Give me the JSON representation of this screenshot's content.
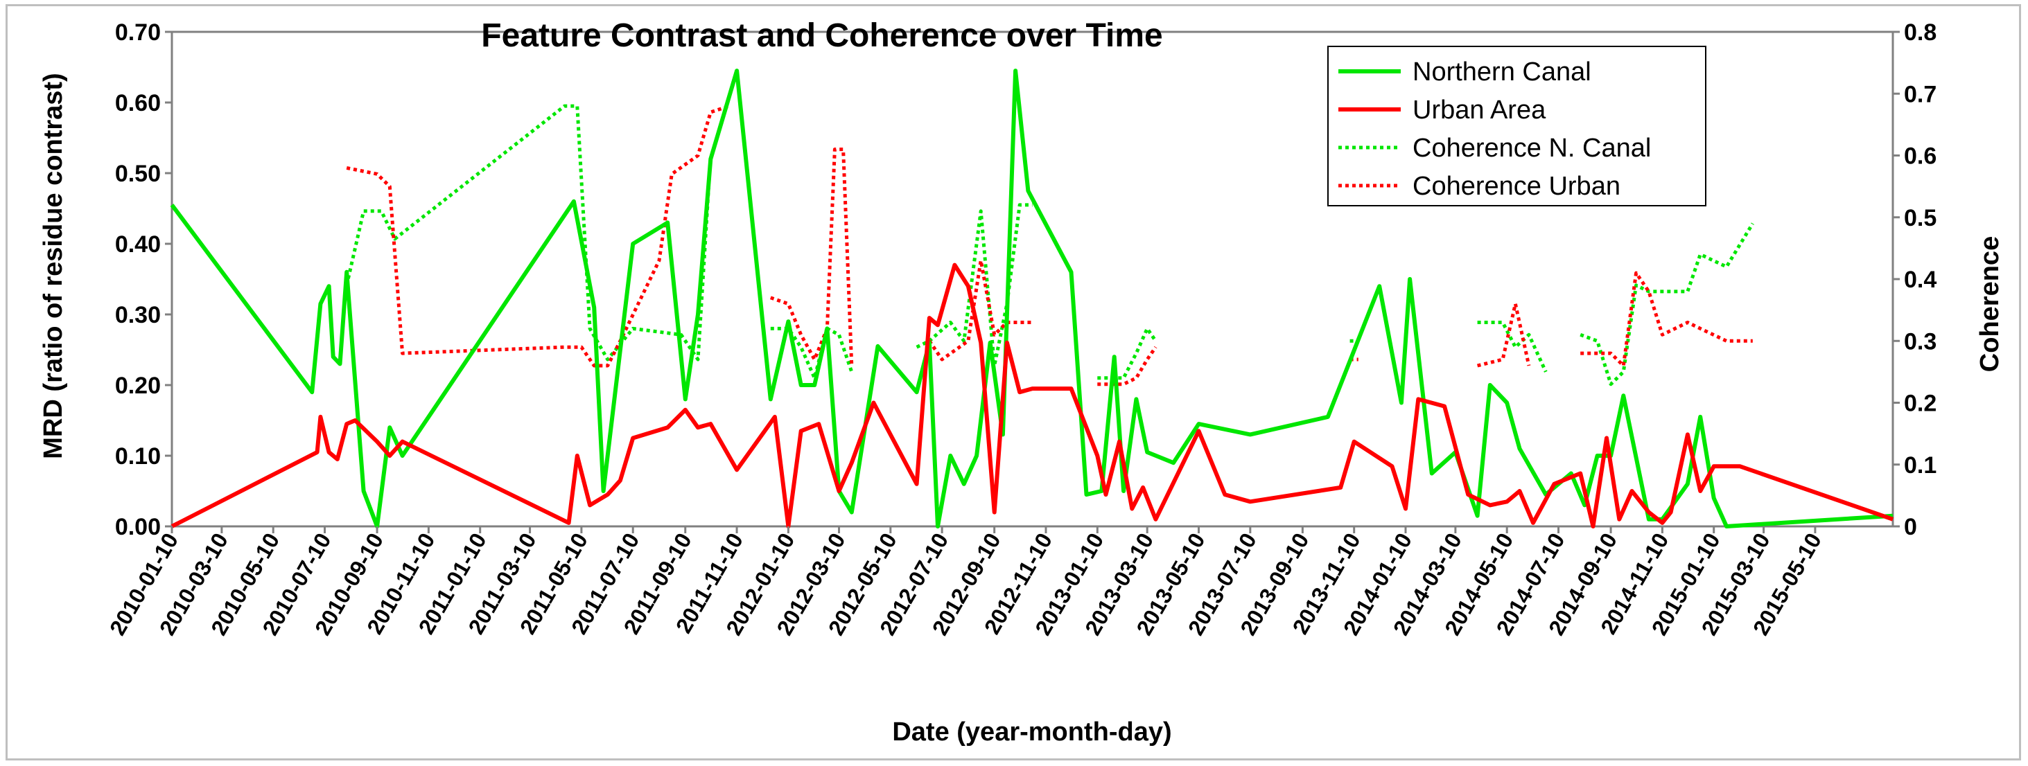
{
  "chart_data": {
    "type": "line",
    "title": "Feature Contrast and Coherence over Time",
    "xlabel": "Date (year-month-day)",
    "ylabel": "MRD (ratio of residue contrast)",
    "y2label": "Coherence",
    "xlim": [
      "2010-01-10",
      "2015-08-10"
    ],
    "ylim": [
      0,
      0.7
    ],
    "y2lim": [
      0,
      0.8
    ],
    "legend_position": "top-right",
    "grid": false,
    "yticks": [
      "0.00",
      "0.10",
      "0.20",
      "0.30",
      "0.40",
      "0.50",
      "0.60",
      "0.70"
    ],
    "y2ticks": [
      "0",
      "0.1",
      "0.2",
      "0.3",
      "0.4",
      "0.5",
      "0.6",
      "0.7",
      "0.8"
    ],
    "xticks": [
      "2010-01-10",
      "2010-03-10",
      "2010-05-10",
      "2010-07-10",
      "2010-09-10",
      "2010-11-10",
      "2011-01-10",
      "2011-03-10",
      "2011-05-10",
      "2011-07-10",
      "2011-09-10",
      "2011-11-10",
      "2012-01-10",
      "2012-03-10",
      "2012-05-10",
      "2012-07-10",
      "2012-09-10",
      "2012-11-10",
      "2013-01-10",
      "2013-03-10",
      "2013-05-10",
      "2013-07-10",
      "2013-09-10",
      "2013-11-10",
      "2014-01-10",
      "2014-03-10",
      "2014-05-10",
      "2014-07-10",
      "2014-09-10",
      "2014-11-10",
      "2015-01-10",
      "2015-03-10",
      "2015-05-10"
    ],
    "series": [
      {
        "name": "Northern Canal",
        "axis": "left",
        "style": "solid",
        "color": "#00e600",
        "points": [
          [
            "2010-01-10",
            0.455
          ],
          [
            "2010-06-25",
            0.19
          ],
          [
            "2010-07-05",
            0.315
          ],
          [
            "2010-07-15",
            0.34
          ],
          [
            "2010-07-20",
            0.24
          ],
          [
            "2010-07-28",
            0.23
          ],
          [
            "2010-08-05",
            0.36
          ],
          [
            "2010-08-25",
            0.05
          ],
          [
            "2010-09-10",
            0.0
          ],
          [
            "2010-09-25",
            0.14
          ],
          [
            "2010-10-10",
            0.1
          ],
          [
            "2011-05-01",
            0.46
          ],
          [
            "2011-05-25",
            0.31
          ],
          [
            "2011-06-05",
            0.05
          ],
          [
            "2011-07-10",
            0.4
          ],
          [
            "2011-08-20",
            0.43
          ],
          [
            "2011-09-10",
            0.18
          ],
          [
            "2011-09-25",
            0.3
          ],
          [
            "2011-10-10",
            0.52
          ],
          [
            "2011-11-10",
            0.645
          ],
          [
            "2011-12-20",
            0.18
          ],
          [
            "2012-01-10",
            0.29
          ],
          [
            "2012-01-25",
            0.2
          ],
          [
            "2012-02-10",
            0.2
          ],
          [
            "2012-02-25",
            0.28
          ],
          [
            "2012-03-10",
            0.05
          ],
          [
            "2012-03-25",
            0.02
          ],
          [
            "2012-04-25",
            0.255
          ],
          [
            "2012-06-10",
            0.19
          ],
          [
            "2012-06-25",
            0.26
          ],
          [
            "2012-07-05",
            0.0
          ],
          [
            "2012-07-20",
            0.1
          ],
          [
            "2012-08-05",
            0.06
          ],
          [
            "2012-08-20",
            0.1
          ],
          [
            "2012-09-05",
            0.26
          ],
          [
            "2012-09-20",
            0.13
          ],
          [
            "2012-10-05",
            0.645
          ],
          [
            "2012-10-20",
            0.475
          ],
          [
            "2012-12-10",
            0.36
          ],
          [
            "2012-12-28",
            0.045
          ],
          [
            "2013-01-15",
            0.05
          ],
          [
            "2013-01-30",
            0.24
          ],
          [
            "2013-02-10",
            0.05
          ],
          [
            "2013-02-25",
            0.18
          ],
          [
            "2013-03-10",
            0.105
          ],
          [
            "2013-04-10",
            0.09
          ],
          [
            "2013-05-10",
            0.145
          ],
          [
            "2013-07-10",
            0.13
          ],
          [
            "2013-10-10",
            0.155
          ],
          [
            "2013-12-10",
            0.34
          ],
          [
            "2014-01-05",
            0.175
          ],
          [
            "2014-01-15",
            0.35
          ],
          [
            "2014-02-10",
            0.075
          ],
          [
            "2014-03-10",
            0.105
          ],
          [
            "2014-04-05",
            0.015
          ],
          [
            "2014-04-20",
            0.2
          ],
          [
            "2014-05-10",
            0.175
          ],
          [
            "2014-05-25",
            0.11
          ],
          [
            "2014-06-25",
            0.045
          ],
          [
            "2014-07-25",
            0.075
          ],
          [
            "2014-08-10",
            0.03
          ],
          [
            "2014-08-25",
            0.1
          ],
          [
            "2014-09-10",
            0.1
          ],
          [
            "2014-09-25",
            0.185
          ],
          [
            "2014-10-25",
            0.01
          ],
          [
            "2014-11-10",
            0.01
          ],
          [
            "2014-12-10",
            0.06
          ],
          [
            "2014-12-25",
            0.155
          ],
          [
            "2015-01-10",
            0.04
          ],
          [
            "2015-01-25",
            0.0
          ],
          [
            "2015-08-10",
            0.015
          ]
        ]
      },
      {
        "name": "Urban Area",
        "axis": "left",
        "style": "solid",
        "color": "#ff0000",
        "points": [
          [
            "2010-01-10",
            0.0
          ],
          [
            "2010-07-01",
            0.105
          ],
          [
            "2010-07-05",
            0.155
          ],
          [
            "2010-07-15",
            0.105
          ],
          [
            "2010-07-25",
            0.095
          ],
          [
            "2010-08-05",
            0.145
          ],
          [
            "2010-08-15",
            0.15
          ],
          [
            "2010-09-10",
            0.12
          ],
          [
            "2010-09-25",
            0.1
          ],
          [
            "2010-10-10",
            0.12
          ],
          [
            "2011-04-25",
            0.005
          ],
          [
            "2011-05-05",
            0.1
          ],
          [
            "2011-05-20",
            0.03
          ],
          [
            "2011-06-10",
            0.045
          ],
          [
            "2011-06-25",
            0.065
          ],
          [
            "2011-07-10",
            0.125
          ],
          [
            "2011-08-20",
            0.14
          ],
          [
            "2011-09-10",
            0.165
          ],
          [
            "2011-09-25",
            0.14
          ],
          [
            "2011-10-10",
            0.145
          ],
          [
            "2011-11-10",
            0.08
          ],
          [
            "2011-12-25",
            0.155
          ],
          [
            "2012-01-10",
            0.0
          ],
          [
            "2012-01-25",
            0.135
          ],
          [
            "2012-02-15",
            0.145
          ],
          [
            "2012-03-10",
            0.05
          ],
          [
            "2012-03-25",
            0.09
          ],
          [
            "2012-04-20",
            0.175
          ],
          [
            "2012-06-10",
            0.06
          ],
          [
            "2012-06-25",
            0.295
          ],
          [
            "2012-07-05",
            0.285
          ],
          [
            "2012-07-25",
            0.37
          ],
          [
            "2012-08-10",
            0.34
          ],
          [
            "2012-08-25",
            0.26
          ],
          [
            "2012-09-10",
            0.02
          ],
          [
            "2012-09-25",
            0.26
          ],
          [
            "2012-10-10",
            0.19
          ],
          [
            "2012-10-25",
            0.195
          ],
          [
            "2012-12-10",
            0.195
          ],
          [
            "2013-01-10",
            0.1
          ],
          [
            "2013-01-20",
            0.045
          ],
          [
            "2013-02-05",
            0.12
          ],
          [
            "2013-02-20",
            0.025
          ],
          [
            "2013-03-05",
            0.055
          ],
          [
            "2013-03-20",
            0.01
          ],
          [
            "2013-05-10",
            0.135
          ],
          [
            "2013-06-10",
            0.045
          ],
          [
            "2013-07-10",
            0.035
          ],
          [
            "2013-10-25",
            0.055
          ],
          [
            "2013-11-10",
            0.12
          ],
          [
            "2013-12-25",
            0.085
          ],
          [
            "2014-01-10",
            0.025
          ],
          [
            "2014-01-25",
            0.18
          ],
          [
            "2014-02-25",
            0.17
          ],
          [
            "2014-03-25",
            0.045
          ],
          [
            "2014-04-20",
            0.03
          ],
          [
            "2014-05-10",
            0.035
          ],
          [
            "2014-05-25",
            0.05
          ],
          [
            "2014-06-10",
            0.005
          ],
          [
            "2014-07-05",
            0.06
          ],
          [
            "2014-08-05",
            0.075
          ],
          [
            "2014-08-20",
            0.0
          ],
          [
            "2014-09-05",
            0.125
          ],
          [
            "2014-09-20",
            0.01
          ],
          [
            "2014-10-05",
            0.05
          ],
          [
            "2014-10-25",
            0.02
          ],
          [
            "2014-11-10",
            0.005
          ],
          [
            "2014-11-20",
            0.02
          ],
          [
            "2014-12-10",
            0.13
          ],
          [
            "2014-12-25",
            0.05
          ],
          [
            "2015-01-10",
            0.085
          ],
          [
            "2015-02-10",
            0.085
          ],
          [
            "2015-08-10",
            0.01
          ]
        ]
      },
      {
        "name": "Coherence N. Canal",
        "axis": "right",
        "style": "dotted",
        "color": "#00e600",
        "segments": [
          [
            [
              "2010-08-05",
              0.39
            ],
            [
              "2010-08-25",
              0.51
            ],
            [
              "2010-09-15",
              0.51
            ],
            [
              "2010-10-01",
              0.465
            ],
            [
              "2011-04-20",
              0.68
            ],
            [
              "2011-05-05",
              0.68
            ],
            [
              "2011-05-20",
              0.32
            ],
            [
              "2011-06-10",
              0.27
            ],
            [
              "2011-07-10",
              0.32
            ],
            [
              "2011-09-05",
              0.31
            ],
            [
              "2011-09-25",
              0.27
            ],
            [
              "2011-10-10",
              0.6
            ]
          ],
          [
            [
              "2011-12-20",
              0.32
            ],
            [
              "2012-01-10",
              0.32
            ],
            [
              "2012-01-25",
              0.29
            ],
            [
              "2012-02-10",
              0.24
            ],
            [
              "2012-02-25",
              0.32
            ],
            [
              "2012-03-10",
              0.31
            ],
            [
              "2012-03-25",
              0.25
            ]
          ],
          [
            [
              "2012-06-10",
              0.29
            ],
            [
              "2012-06-25",
              0.3
            ],
            [
              "2012-07-20",
              0.33
            ],
            [
              "2012-08-05",
              0.3
            ],
            [
              "2012-08-25",
              0.51
            ],
            [
              "2012-09-10",
              0.26
            ],
            [
              "2012-09-25",
              0.36
            ],
            [
              "2012-10-10",
              0.52
            ],
            [
              "2012-10-25",
              0.52
            ]
          ],
          [
            [
              "2013-01-10",
              0.24
            ],
            [
              "2013-02-10",
              0.24
            ],
            [
              "2013-02-25",
              0.28
            ],
            [
              "2013-03-10",
              0.32
            ],
            [
              "2013-03-20",
              0.3
            ]
          ],
          [
            [
              "2013-11-05",
              0.3
            ],
            [
              "2013-11-15",
              0.3
            ]
          ],
          [
            [
              "2014-04-05",
              0.33
            ],
            [
              "2014-05-05",
              0.33
            ],
            [
              "2014-05-20",
              0.29
            ],
            [
              "2014-06-05",
              0.31
            ],
            [
              "2014-06-25",
              0.25
            ]
          ],
          [
            [
              "2014-08-05",
              0.31
            ],
            [
              "2014-08-25",
              0.3
            ],
            [
              "2014-09-10",
              0.23
            ],
            [
              "2014-09-25",
              0.25
            ],
            [
              "2014-10-10",
              0.39
            ],
            [
              "2014-10-25",
              0.38
            ],
            [
              "2014-12-10",
              0.38
            ],
            [
              "2014-12-25",
              0.44
            ],
            [
              "2015-01-25",
              0.42
            ],
            [
              "2015-02-25",
              0.49
            ]
          ]
        ]
      },
      {
        "name": "Coherence Urban",
        "axis": "right",
        "style": "dotted",
        "color": "#ff0000",
        "segments": [
          [
            [
              "2010-08-05",
              0.58
            ],
            [
              "2010-09-10",
              0.57
            ],
            [
              "2010-09-25",
              0.55
            ],
            [
              "2010-10-10",
              0.28
            ],
            [
              "2011-04-20",
              0.29
            ],
            [
              "2011-05-10",
              0.29
            ],
            [
              "2011-05-25",
              0.26
            ],
            [
              "2011-06-10",
              0.26
            ],
            [
              "2011-06-25",
              0.3
            ],
            [
              "2011-08-10",
              0.43
            ],
            [
              "2011-08-25",
              0.57
            ],
            [
              "2011-09-25",
              0.6
            ],
            [
              "2011-10-10",
              0.67
            ],
            [
              "2011-11-01",
              0.68
            ]
          ],
          [
            [
              "2011-12-20",
              0.37
            ],
            [
              "2012-01-10",
              0.36
            ],
            [
              "2012-01-25",
              0.31
            ],
            [
              "2012-02-10",
              0.27
            ],
            [
              "2012-02-25",
              0.32
            ],
            [
              "2012-03-05",
              0.61
            ],
            [
              "2012-03-15",
              0.61
            ],
            [
              "2012-03-25",
              0.26
            ]
          ],
          [
            [
              "2012-06-25",
              0.3
            ],
            [
              "2012-07-10",
              0.27
            ],
            [
              "2012-08-10",
              0.3
            ],
            [
              "2012-08-25",
              0.43
            ],
            [
              "2012-09-10",
              0.31
            ],
            [
              "2012-09-25",
              0.33
            ],
            [
              "2012-10-25",
              0.33
            ]
          ],
          [
            [
              "2013-01-10",
              0.23
            ],
            [
              "2013-02-10",
              0.23
            ],
            [
              "2013-02-25",
              0.24
            ],
            [
              "2013-03-10",
              0.27
            ],
            [
              "2013-03-20",
              0.29
            ]
          ],
          [
            [
              "2013-11-05",
              0.27
            ],
            [
              "2013-11-15",
              0.27
            ]
          ],
          [
            [
              "2014-04-05",
              0.26
            ],
            [
              "2014-05-05",
              0.27
            ],
            [
              "2014-05-20",
              0.36
            ],
            [
              "2014-06-05",
              0.26
            ]
          ],
          [
            [
              "2014-08-05",
              0.28
            ],
            [
              "2014-09-10",
              0.28
            ],
            [
              "2014-09-25",
              0.26
            ],
            [
              "2014-10-10",
              0.41
            ],
            [
              "2014-10-25",
              0.38
            ],
            [
              "2014-11-10",
              0.31
            ],
            [
              "2014-12-10",
              0.33
            ],
            [
              "2014-12-25",
              0.32
            ],
            [
              "2015-01-25",
              0.3
            ],
            [
              "2015-02-25",
              0.3
            ]
          ]
        ]
      }
    ]
  }
}
